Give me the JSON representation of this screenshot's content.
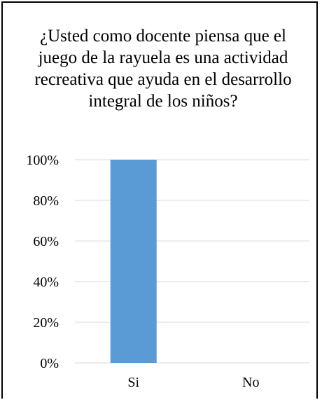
{
  "chart_data": {
    "type": "bar",
    "title": "¿Usted como docente piensa que el juego de la rayuela es una actividad recreativa que ayuda en el desarrollo integral de los niños?",
    "categories": [
      "Si",
      "No"
    ],
    "values": [
      1.0,
      0.0
    ],
    "y_ticks": [
      "0%",
      "20%",
      "40%",
      "60%",
      "80%",
      "100%"
    ],
    "ylim": [
      0,
      1
    ],
    "grid": true,
    "legend": false,
    "xlabel": "",
    "ylabel": ""
  },
  "colors": {
    "bar": "#5b9bd5",
    "gridline": "#d9d9d9",
    "axis": "#d9d9d9"
  }
}
